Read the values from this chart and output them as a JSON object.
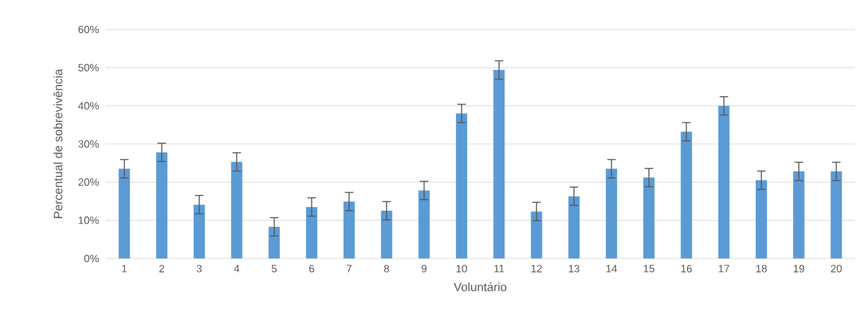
{
  "chart_data": {
    "type": "bar",
    "xlabel": "Voluntário",
    "ylabel": "Percentual de sobrevivência",
    "categories": [
      "1",
      "2",
      "3",
      "4",
      "5",
      "6",
      "7",
      "8",
      "9",
      "10",
      "11",
      "12",
      "13",
      "14",
      "15",
      "16",
      "17",
      "18",
      "19",
      "20"
    ],
    "values": [
      23.5,
      27.8,
      14.1,
      25.3,
      8.3,
      13.5,
      14.9,
      12.5,
      17.8,
      38.0,
      49.4,
      12.3,
      16.3,
      23.5,
      21.2,
      33.2,
      40.0,
      20.5,
      22.8,
      22.8
    ],
    "errors": [
      2.4,
      2.4,
      2.4,
      2.4,
      2.4,
      2.4,
      2.4,
      2.4,
      2.4,
      2.4,
      2.4,
      2.4,
      2.4,
      2.4,
      2.4,
      2.4,
      2.4,
      2.4,
      2.4,
      2.4
    ],
    "color": "#5b9bd5",
    "ylim": [
      0,
      60
    ],
    "yticks": [
      {
        "value": 0,
        "label": "0%"
      },
      {
        "value": 10,
        "label": "10%"
      },
      {
        "value": 20,
        "label": "20%"
      },
      {
        "value": 30,
        "label": "30%"
      },
      {
        "value": 40,
        "label": "40%"
      },
      {
        "value": 50,
        "label": "50%"
      },
      {
        "value": 60,
        "label": "60%"
      }
    ],
    "grid": "y"
  }
}
